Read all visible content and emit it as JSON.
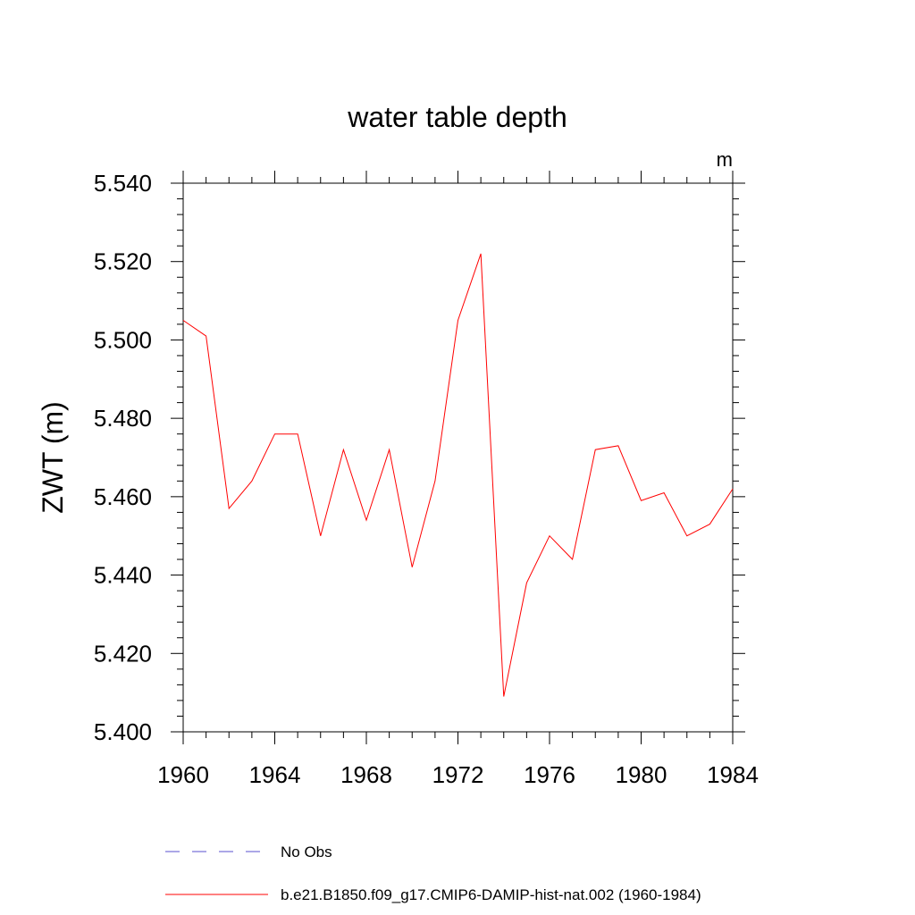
{
  "chart_data": {
    "type": "line",
    "title": "water table depth",
    "units_label": "m",
    "xlabel": "",
    "ylabel": "ZWT  (m)",
    "xlim": [
      1960,
      1984
    ],
    "ylim": [
      5.4,
      5.54
    ],
    "x_ticks": [
      "1960",
      "1964",
      "1968",
      "1972",
      "1976",
      "1980",
      "1984"
    ],
    "y_ticks": [
      "5.400",
      "5.420",
      "5.440",
      "5.460",
      "5.480",
      "5.500",
      "5.520",
      "5.540"
    ],
    "grid": false,
    "legend_position": "bottom",
    "x": [
      1960,
      1961,
      1962,
      1963,
      1964,
      1965,
      1966,
      1967,
      1968,
      1969,
      1970,
      1971,
      1972,
      1973,
      1974,
      1975,
      1976,
      1977,
      1978,
      1979,
      1980,
      1981,
      1982,
      1983,
      1984
    ],
    "series": [
      {
        "name": "b.e21.B1850.f09_g17.CMIP6-DAMIP-hist-nat.002 (1960-1984)",
        "color": "#ff0000",
        "style": "solid",
        "values": [
          5.505,
          5.501,
          5.457,
          5.464,
          5.476,
          5.476,
          5.45,
          5.472,
          5.454,
          5.472,
          5.442,
          5.464,
          5.505,
          5.522,
          5.409,
          5.438,
          5.45,
          5.444,
          5.472,
          5.473,
          5.459,
          5.461,
          5.45,
          5.453,
          5.462
        ]
      }
    ],
    "legend": [
      {
        "label": "No Obs",
        "color": "#5a4fcf",
        "style": "dashed"
      },
      {
        "label": "b.e21.B1850.f09_g17.CMIP6-DAMIP-hist-nat.002 (1960-1984)",
        "color": "#ff0000",
        "style": "solid"
      }
    ]
  }
}
